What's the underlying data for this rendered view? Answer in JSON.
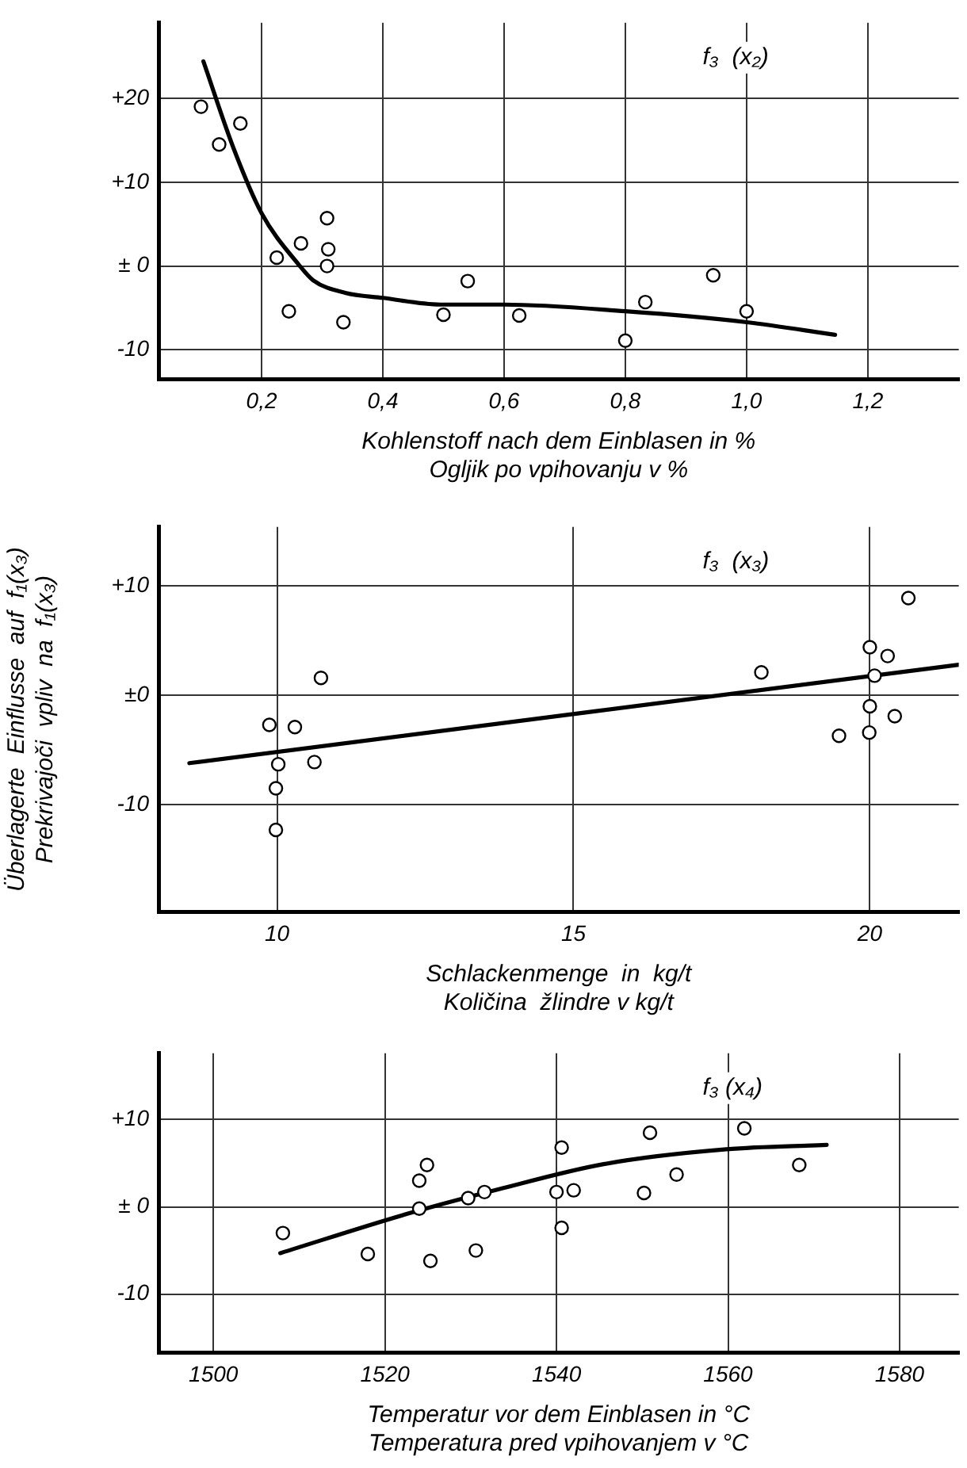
{
  "chart_data": [
    {
      "type": "scatter",
      "xlabel": "Kohlenstoff nach dem Einblasen in %\nOgljik po vpihovanju v %",
      "annotations": [
        "f₃  (x₂)"
      ],
      "grid": true,
      "xlim": [
        0.03,
        1.35
      ],
      "xticks": [
        {
          "value": 0.2,
          "label": "0,2"
        },
        {
          "value": 0.4,
          "label": "0,4"
        },
        {
          "value": 0.6,
          "label": "0,6"
        },
        {
          "value": 0.8,
          "label": "0,8"
        },
        {
          "value": 1.0,
          "label": "1,0"
        },
        {
          "value": 1.2,
          "label": "1,2"
        }
      ],
      "ylim": [
        -13.5,
        29
      ],
      "yticks": [
        {
          "value": 20,
          "label": "+20"
        },
        {
          "value": 10,
          "label": "+10"
        },
        {
          "value": 0,
          "label": "± 0"
        },
        {
          "value": -10,
          "label": "-10"
        }
      ],
      "series": [
        {
          "type": "scatter",
          "marker": "circle",
          "color": "#000000",
          "x": [
            0.1,
            0.13,
            0.165,
            0.225,
            0.265,
            0.308,
            0.31,
            0.308,
            0.245,
            0.335,
            0.5,
            0.54,
            0.625,
            0.8,
            0.833,
            0.945,
            1.0
          ],
          "values": [
            19,
            14.5,
            17,
            1,
            2.7,
            5.7,
            2,
            0,
            -5.4,
            -6.7,
            -5.8,
            -1.8,
            -5.9,
            -8.9,
            -4.3,
            -1.1,
            -5.4
          ]
        },
        {
          "type": "line",
          "marker": "none",
          "color": "#000000",
          "x": [
            0.104,
            0.154,
            0.2,
            0.262,
            0.285,
            0.338,
            0.4,
            0.495,
            0.6,
            0.8,
            1.0,
            1.146
          ],
          "values": [
            24.4,
            14,
            6.3,
            0.1,
            -1.7,
            -3.2,
            -3.8,
            -4.6,
            -4.6,
            -5.4,
            -6.7,
            -8.2
          ]
        }
      ]
    },
    {
      "type": "scatter",
      "xlabel": "Schlackenmenge  in  kg/t\nKoličina  žlindre v kg/t",
      "ylabel": "Überlagerte  Einflusse  auf  f₁(x₃)\nPrekrivajoči  vpliv  na  f₁(x₃)",
      "annotations": [
        "f₃  (x₃)"
      ],
      "grid": true,
      "xlim": [
        8,
        21.5
      ],
      "xticks": [
        10,
        15,
        20
      ],
      "ylim": [
        -19.8,
        15.4
      ],
      "yticks": [
        {
          "value": 10,
          "label": "+10"
        },
        {
          "value": 0,
          "label": "±0"
        },
        {
          "value": -10,
          "label": "-10"
        }
      ],
      "series": [
        {
          "type": "scatter",
          "marker": "circle",
          "color": "#000000",
          "x": [
            9.87,
            10.3,
            10.74,
            10.02,
            10.63,
            9.98,
            9.98,
            18.17,
            20,
            20.3,
            20.08,
            20,
            19.99,
            19.48,
            20.42,
            20.65
          ],
          "values": [
            -2.7,
            -2.9,
            1.6,
            -6.3,
            -6.1,
            -8.5,
            -12.3,
            2.1,
            4.4,
            3.6,
            1.8,
            -1,
            -3.4,
            -3.7,
            -1.9,
            8.9
          ]
        },
        {
          "type": "line",
          "marker": "none",
          "color": "#000000",
          "x": [
            8.52,
            21.5
          ],
          "values": [
            -6.2,
            2.8
          ]
        }
      ]
    },
    {
      "type": "scatter",
      "xlabel": "Temperatur vor dem Einblasen in °C\nTemperatura pred vpihovanjem v °C",
      "annotations": [
        "f₃ (x₄)"
      ],
      "grid": true,
      "xlim": [
        1493.6,
        1586.9
      ],
      "xticks": [
        1500,
        1520,
        1540,
        1560,
        1580
      ],
      "ylim": [
        -16.7,
        17.6
      ],
      "yticks": [
        {
          "value": 10,
          "label": "+10"
        },
        {
          "value": 0,
          "label": "± 0"
        },
        {
          "value": -10,
          "label": "-10"
        }
      ],
      "series": [
        {
          "type": "scatter",
          "marker": "circle",
          "color": "#000000",
          "x": [
            1508.1,
            1518,
            1524,
            1524.9,
            1524,
            1525.3,
            1529.7,
            1531.6,
            1530.6,
            1540,
            1542,
            1540.6,
            1540.6,
            1550.2,
            1550.9,
            1554,
            1561.9,
            1568.3
          ],
          "values": [
            -3.0,
            -5.4,
            3.0,
            4.8,
            -0.2,
            -6.2,
            1.0,
            1.7,
            -5.0,
            1.7,
            1.9,
            6.8,
            -2.4,
            1.6,
            8.5,
            3.7,
            9.0,
            4.8
          ]
        },
        {
          "type": "line",
          "marker": "none",
          "color": "#000000",
          "x": [
            1507.8,
            1522.6,
            1533.2,
            1545.5,
            1559.8,
            1571.5
          ],
          "values": [
            -5.3,
            -0.8,
            2.0,
            4.9,
            6.6,
            7.1
          ]
        }
      ]
    }
  ]
}
